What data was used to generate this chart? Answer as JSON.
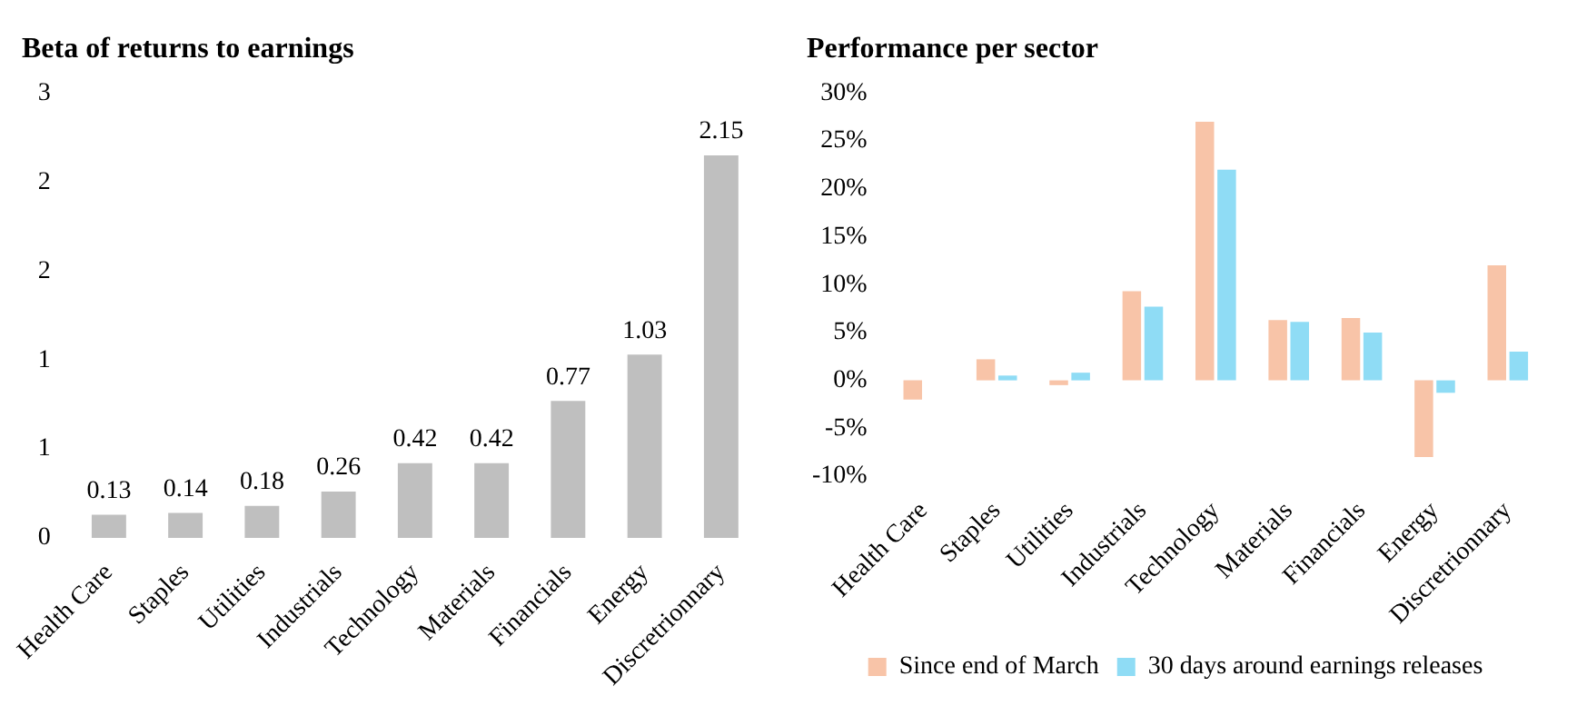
{
  "chart_data": [
    {
      "type": "bar",
      "title": "Beta of returns to earnings",
      "categories": [
        "Health Care",
        "Staples",
        "Utilities",
        "Industrials",
        "Technology",
        "Materials",
        "Financials",
        "Energy",
        "Discretrionnary"
      ],
      "values": [
        0.13,
        0.14,
        0.18,
        0.26,
        0.42,
        0.42,
        0.77,
        1.03,
        2.15
      ],
      "color": "#bfbfbf",
      "data_labels": true,
      "ylim": [
        0,
        2.5
      ],
      "yticks": [
        0,
        {
          "value": 0.5,
          "label": "1"
        },
        1,
        {
          "value": 1.5,
          "label": "2"
        },
        2,
        {
          "value": 2.5,
          "label": "3"
        }
      ],
      "grid": false
    },
    {
      "type": "bar",
      "title": "Performance per sector",
      "categories": [
        "Health Care",
        "Staples",
        "Utilities",
        "Industrials",
        "Technology",
        "Materials",
        "Financials",
        "Energy",
        "Discretrionnary"
      ],
      "series": [
        {
          "name": "Since end of March",
          "color": "#f8c4a8",
          "values": [
            -2,
            2.2,
            -0.5,
            9.3,
            27,
            6.3,
            6.5,
            -8,
            12
          ]
        },
        {
          "name": "30 days around earnings releases",
          "color": "#8fdcf5",
          "values": [
            0,
            0.5,
            0.8,
            7.7,
            22,
            6.1,
            5,
            -1.3,
            3
          ]
        }
      ],
      "ylim": [
        -10,
        30
      ],
      "yticks": [
        {
          "value": -10,
          "label": "-10%"
        },
        {
          "value": -5,
          "label": "-5%"
        },
        {
          "value": 0,
          "label": "0%"
        },
        {
          "value": 5,
          "label": "5%"
        },
        {
          "value": 10,
          "label": "10%"
        },
        {
          "value": 15,
          "label": "15%"
        },
        {
          "value": 20,
          "label": "20%"
        },
        {
          "value": 25,
          "label": "25%"
        },
        {
          "value": 30,
          "label": "30%"
        }
      ],
      "grid": false,
      "legend": "bottom"
    }
  ]
}
